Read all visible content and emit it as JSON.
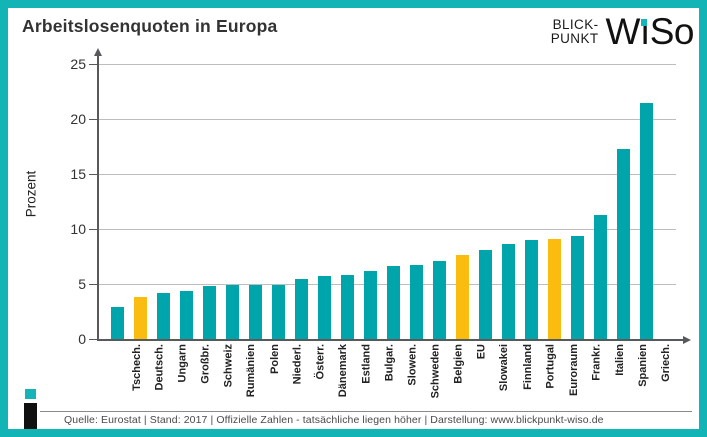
{
  "title": "Arbeitslosenquoten in Europa",
  "logo": {
    "line1": "BLICK-",
    "line2": "PUNKT",
    "wordmark_start": "W",
    "wordmark_i_stem": "ı",
    "wordmark_end": "So",
    "i_dot_color": "#14b5b8"
  },
  "chart_data": {
    "type": "bar",
    "title": "Arbeitslosenquoten in Europa",
    "xlabel": "",
    "ylabel": "Prozent",
    "ylim": [
      0,
      25
    ],
    "yticks": [
      0,
      5,
      10,
      15,
      20,
      25
    ],
    "grid": true,
    "categories": [
      "Tschech.",
      "Deutsch.",
      "Ungarn",
      "Großbr.",
      "Schweiz",
      "Rumänien",
      "Polen",
      "Niederl.",
      "Österr.",
      "Dänemark",
      "Estland",
      "Bulgar.",
      "Slowen.",
      "Schweden",
      "Belgien",
      "EU",
      "Slowakei",
      "Finnland",
      "Portugal",
      "Euroraum",
      "Frankr.",
      "Italien",
      "Spanien",
      "Griech."
    ],
    "values": [
      2.9,
      3.8,
      4.2,
      4.4,
      4.8,
      4.9,
      4.9,
      4.9,
      5.5,
      5.7,
      5.8,
      6.2,
      6.6,
      6.7,
      7.1,
      7.6,
      8.1,
      8.6,
      9.0,
      9.1,
      9.4,
      11.3,
      17.3,
      21.5
    ],
    "highlighted_categories": [
      "Deutsch.",
      "EU",
      "Euroraum"
    ],
    "bar_color": "#00a5ac",
    "highlight_color": "#fbbc10",
    "gridline_color": "#bdbdbd",
    "axis_color": "#58595b"
  },
  "footer": {
    "text": "Quelle: Eurostat  |  Stand: 2017  |  Offizielle Zahlen - tatsächliche liegen höher  |  Darstellung: www.blickpunkt-wiso.de"
  },
  "colors": {
    "frame_border": "#12b4b6",
    "background": "#ffffff"
  }
}
